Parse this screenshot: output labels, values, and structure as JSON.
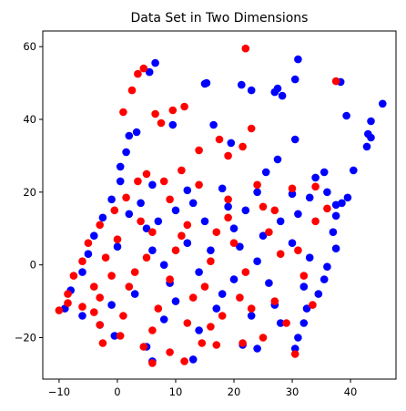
{
  "chart_data": {
    "type": "scatter",
    "title": "Data Set in Two Dimensions",
    "xlabel": "",
    "ylabel": "",
    "xlim": [
      -12.8,
      47.8
    ],
    "ylim": [
      -31.4,
      64.3
    ],
    "xticks": [
      -10,
      0,
      10,
      20,
      30,
      40
    ],
    "yticks": [
      -20,
      0,
      20,
      40,
      60
    ],
    "grid": false,
    "legend": "none",
    "colors": {
      "series_a": "#0000ff",
      "series_b": "#ff0000"
    },
    "series": [
      {
        "color": "#0000ff",
        "points": [
          [
            5.5,
            53
          ],
          [
            6.5,
            55.5
          ],
          [
            15.3,
            50
          ],
          [
            15,
            49.8
          ],
          [
            21.3,
            49.5
          ],
          [
            31,
            56.5
          ],
          [
            30.5,
            51
          ],
          [
            38.3,
            50.3
          ],
          [
            45.5,
            44.3
          ],
          [
            43.5,
            39.5
          ],
          [
            39.3,
            41
          ],
          [
            43,
            36
          ],
          [
            43.5,
            35
          ],
          [
            42.8,
            32.5
          ],
          [
            40.5,
            26
          ],
          [
            39.5,
            18.5
          ],
          [
            38.5,
            17
          ],
          [
            37.5,
            16.5
          ],
          [
            30.5,
            34.5
          ],
          [
            25.5,
            25.5
          ],
          [
            27.5,
            48.5
          ],
          [
            27,
            47.5
          ],
          [
            28.3,
            46.5
          ],
          [
            23,
            48
          ],
          [
            16.5,
            38.5
          ],
          [
            9.5,
            38.5
          ],
          [
            3.3,
            36.5
          ],
          [
            2,
            35.5
          ],
          [
            1.5,
            31
          ],
          [
            0.5,
            27
          ],
          [
            19.5,
            33.5
          ],
          [
            27.5,
            29
          ],
          [
            34,
            24
          ],
          [
            35.5,
            25.5
          ],
          [
            36,
            20
          ],
          [
            33,
            18.5
          ],
          [
            37.5,
            13.5
          ],
          [
            37,
            9
          ],
          [
            37.5,
            4.5
          ],
          [
            36,
            -0.5
          ],
          [
            35.5,
            -4
          ],
          [
            34.5,
            -8
          ],
          [
            32.5,
            -12
          ],
          [
            32,
            -16
          ],
          [
            31,
            -20
          ],
          [
            30.5,
            -23
          ],
          [
            24,
            -23
          ],
          [
            21.5,
            -22
          ],
          [
            13,
            -26
          ],
          [
            6,
            -26.5
          ],
          [
            5,
            -22.5
          ],
          [
            -0.5,
            -19.5
          ],
          [
            -3,
            -16.5
          ],
          [
            -6,
            -14
          ],
          [
            -9,
            -12
          ],
          [
            -8,
            -7
          ],
          [
            -6,
            -2
          ],
          [
            -5,
            3
          ],
          [
            -4,
            8
          ],
          [
            -2.5,
            13
          ],
          [
            -1,
            18
          ],
          [
            0.5,
            23
          ],
          [
            6,
            22
          ],
          [
            12,
            20.5
          ],
          [
            18,
            21
          ],
          [
            24,
            20
          ],
          [
            30,
            19.5
          ],
          [
            10,
            15
          ],
          [
            15,
            12
          ],
          [
            20,
            10
          ],
          [
            25,
            8
          ],
          [
            30,
            6
          ],
          [
            5,
            10
          ],
          [
            0,
            5
          ],
          [
            8,
            0
          ],
          [
            14,
            -2
          ],
          [
            20,
            -4
          ],
          [
            26,
            -5
          ],
          [
            32,
            -6
          ],
          [
            3,
            -8
          ],
          [
            10,
            -10
          ],
          [
            17,
            -12
          ],
          [
            23,
            -14
          ],
          [
            28,
            -16
          ],
          [
            2,
            14
          ],
          [
            16,
            4
          ],
          [
            22,
            15
          ],
          [
            28,
            12
          ],
          [
            12,
            6
          ],
          [
            6,
            4
          ],
          [
            18,
            -8
          ],
          [
            24,
            1
          ],
          [
            33,
            2
          ],
          [
            9,
            -5
          ],
          [
            4,
            17
          ],
          [
            21,
            5
          ],
          [
            27,
            -11
          ],
          [
            14,
            -18
          ],
          [
            8,
            -15
          ],
          [
            -1,
            -11
          ],
          [
            13,
            17
          ],
          [
            19,
            16
          ],
          [
            31,
            14
          ],
          [
            7,
            12
          ]
        ]
      },
      {
        "color": "#ff0000",
        "points": [
          [
            4.5,
            54
          ],
          [
            3.5,
            52.5
          ],
          [
            2.5,
            48
          ],
          [
            1,
            42
          ],
          [
            6.5,
            41.5
          ],
          [
            7.5,
            39
          ],
          [
            9.5,
            42.5
          ],
          [
            11.5,
            43.5
          ],
          [
            22,
            59.5
          ],
          [
            37.5,
            50.5
          ],
          [
            14,
            31.5
          ],
          [
            19,
            30
          ],
          [
            21.5,
            32.5
          ],
          [
            23,
            37.5
          ],
          [
            17.5,
            34.5
          ],
          [
            11,
            26
          ],
          [
            5,
            25
          ],
          [
            3.5,
            23
          ],
          [
            1.5,
            18.5
          ],
          [
            -0.5,
            15
          ],
          [
            -3,
            11
          ],
          [
            -5,
            6
          ],
          [
            -6,
            1
          ],
          [
            -7.5,
            -3
          ],
          [
            -8.5,
            -8
          ],
          [
            -10,
            -12.5
          ],
          [
            -8.5,
            -10.5
          ],
          [
            -6,
            -11.5
          ],
          [
            -4,
            -13
          ],
          [
            -3,
            -16.5
          ],
          [
            -2.5,
            -21.5
          ],
          [
            0.5,
            -19.5
          ],
          [
            4.5,
            -22.5
          ],
          [
            6,
            -27
          ],
          [
            9,
            -24
          ],
          [
            11.5,
            -26.5
          ],
          [
            14.5,
            -21.5
          ],
          [
            17,
            -22
          ],
          [
            21.5,
            -21.5
          ],
          [
            25,
            -20
          ],
          [
            30.5,
            -24.5
          ],
          [
            29,
            -16
          ],
          [
            33.5,
            -11
          ],
          [
            34,
            12
          ],
          [
            36,
            15.5
          ],
          [
            34,
            21.5
          ],
          [
            30,
            21
          ],
          [
            25,
            16
          ],
          [
            19,
            13
          ],
          [
            12,
            11
          ],
          [
            6,
            9
          ],
          [
            0,
            7
          ],
          [
            -2,
            2
          ],
          [
            3,
            -2
          ],
          [
            9,
            -4
          ],
          [
            15,
            -6
          ],
          [
            21,
            -9
          ],
          [
            27,
            -10
          ],
          [
            7,
            -12
          ],
          [
            12,
            -16
          ],
          [
            18,
            -14
          ],
          [
            23,
            -12
          ],
          [
            2,
            -6
          ],
          [
            -4,
            -6
          ],
          [
            10,
            4
          ],
          [
            16,
            1
          ],
          [
            22,
            -2
          ],
          [
            28,
            3
          ],
          [
            4,
            12
          ],
          [
            9,
            18
          ],
          [
            14,
            22
          ],
          [
            20,
            6
          ],
          [
            26,
            9
          ],
          [
            31,
            4
          ],
          [
            -1,
            -3
          ],
          [
            5,
            2
          ],
          [
            13,
            -9
          ],
          [
            19,
            18
          ],
          [
            24,
            22
          ],
          [
            8,
            23
          ],
          [
            1,
            -14
          ],
          [
            16,
            -17
          ],
          [
            11,
            8
          ],
          [
            6,
            -18
          ],
          [
            17,
            9
          ],
          [
            27,
            15
          ],
          [
            32,
            -3
          ],
          [
            -3,
            -9
          ]
        ]
      }
    ]
  }
}
